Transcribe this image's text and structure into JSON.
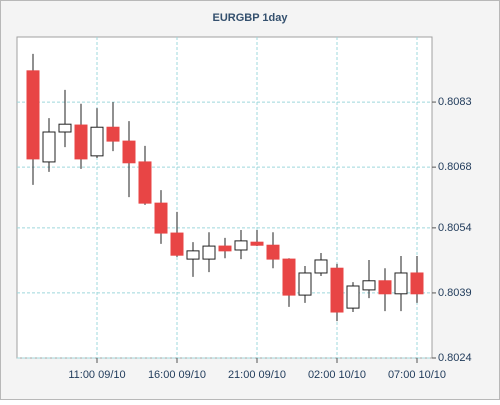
{
  "chart_data": {
    "type": "candlestick",
    "title": "EURGBP 1day",
    "categories": [
      null,
      null,
      null,
      null,
      "11:00 09/10",
      null,
      null,
      null,
      null,
      "16:00 09/10",
      null,
      null,
      null,
      null,
      "21:00 09/10",
      null,
      null,
      null,
      null,
      "02:00 10/10",
      null,
      null,
      null,
      null,
      "07:00 10/10"
    ],
    "open": [
      0.80902,
      0.80692,
      0.80761,
      0.80777,
      0.80706,
      0.80772,
      0.8074,
      0.80692,
      0.80597,
      0.80528,
      0.80468,
      0.80468,
      0.80498,
      0.80489,
      0.80507,
      0.805,
      0.80468,
      0.80385,
      0.80436,
      0.80447,
      0.80355,
      0.80397,
      0.80418,
      0.80388,
      0.80436
    ],
    "high": [
      0.80941,
      0.80793,
      0.80858,
      0.80826,
      0.80816,
      0.8083,
      0.80786,
      0.80729,
      0.80627,
      0.80577,
      0.80507,
      0.8053,
      0.80517,
      0.80535,
      0.80535,
      0.8053,
      0.8047,
      0.80452,
      0.80482,
      0.80457,
      0.80415,
      0.80466,
      0.80447,
      0.80475,
      0.80475
    ],
    "low": [
      0.80639,
      0.80669,
      0.80726,
      0.80676,
      0.80701,
      0.80717,
      0.80611,
      0.80593,
      0.80503,
      0.80473,
      0.80427,
      0.80438,
      0.8047,
      0.80468,
      0.80498,
      0.80447,
      0.80358,
      0.80367,
      0.80429,
      0.80325,
      0.80346,
      0.80378,
      0.80348,
      0.80348,
      0.80367
    ],
    "close": [
      0.80699,
      0.80761,
      0.80779,
      0.80699,
      0.80772,
      0.8074,
      0.8069,
      0.80597,
      0.80528,
      0.80477,
      0.80487,
      0.80498,
      0.80487,
      0.8051,
      0.805,
      0.80468,
      0.80385,
      0.80436,
      0.80466,
      0.80346,
      0.80406,
      0.80418,
      0.80388,
      0.80436,
      0.80388
    ],
    "up_color": "#ffffff",
    "down_color": "#e84545",
    "ylim": [
      0.8024,
      0.8098
    ],
    "yticks": [
      0.8024,
      0.8039,
      0.8054,
      0.8068,
      0.8083
    ],
    "grid": true
  }
}
